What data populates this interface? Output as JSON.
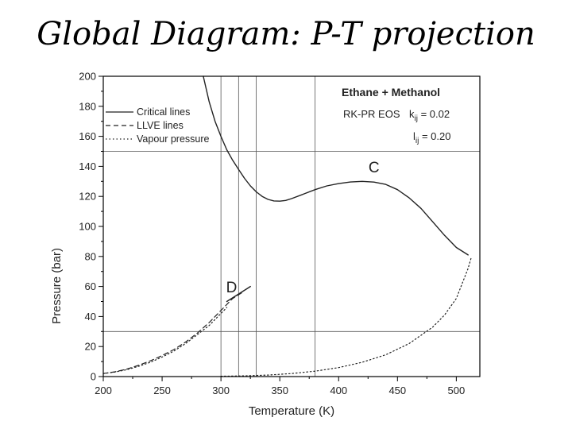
{
  "slide": {
    "title": "Global Diagram: P-T projection"
  },
  "colors": {
    "line": "#222222",
    "grid": "#555555",
    "frame": "#000000"
  },
  "chart_data": {
    "type": "line",
    "title": "Ethane + Methanol",
    "xlabel": "Temperature (K)",
    "ylabel": "Pressure (bar)",
    "xlim": [
      200,
      520
    ],
    "ylim": [
      0,
      200
    ],
    "x_ticks": [
      200,
      250,
      300,
      350,
      400,
      450,
      500
    ],
    "y_ticks": [
      0,
      20,
      40,
      60,
      80,
      100,
      120,
      140,
      160,
      180,
      200
    ],
    "grid_x": [
      300,
      315,
      330,
      380
    ],
    "grid_y": [
      30,
      150
    ],
    "eos": {
      "model": "RK-PR EOS",
      "kij_label": "k",
      "kij_sub": "ij",
      "kij_value": " = 0.02",
      "lij_label": "l",
      "lij_sub": "ij",
      "lij_value": " = 0.20"
    },
    "legend": [
      {
        "label": "Critical lines",
        "style": "solid"
      },
      {
        "label": "LLVE lines",
        "style": "dashed"
      },
      {
        "label": "Vapour pressure",
        "style": "dotted"
      }
    ],
    "series": [
      {
        "name": "Critical line",
        "style": "solid",
        "points": [
          [
            285,
            200
          ],
          [
            290,
            183
          ],
          [
            295,
            170
          ],
          [
            300,
            160
          ],
          [
            305,
            151
          ],
          [
            310,
            144
          ],
          [
            315,
            138
          ],
          [
            320,
            132
          ],
          [
            325,
            127
          ],
          [
            330,
            123
          ],
          [
            335,
            120
          ],
          [
            340,
            118
          ],
          [
            345,
            117
          ],
          [
            350,
            116.8
          ],
          [
            355,
            117.3
          ],
          [
            360,
            118.5
          ],
          [
            370,
            121.5
          ],
          [
            380,
            124.5
          ],
          [
            390,
            127
          ],
          [
            400,
            128.5
          ],
          [
            410,
            129.6
          ],
          [
            420,
            130
          ],
          [
            430,
            129.5
          ],
          [
            440,
            128
          ],
          [
            450,
            124.5
          ],
          [
            460,
            119
          ],
          [
            470,
            112
          ],
          [
            480,
            103
          ],
          [
            490,
            94
          ],
          [
            500,
            86
          ],
          [
            510,
            81
          ]
        ]
      },
      {
        "name": "Critical line (LLVE end)",
        "style": "solid",
        "points": [
          [
            305,
            50
          ],
          [
            315,
            55
          ],
          [
            325,
            60
          ]
        ]
      },
      {
        "name": "LLVE line",
        "style": "dashed",
        "points": [
          [
            200,
            2
          ],
          [
            210,
            3.2
          ],
          [
            220,
            5
          ],
          [
            230,
            7.5
          ],
          [
            240,
            10.5
          ],
          [
            250,
            14
          ],
          [
            260,
            18
          ],
          [
            270,
            23
          ],
          [
            280,
            29
          ],
          [
            290,
            36
          ],
          [
            300,
            44
          ],
          [
            310,
            52
          ],
          [
            318,
            56
          ]
        ]
      },
      {
        "name": "Vapour pressure ethane",
        "style": "dotted",
        "points": [
          [
            200,
            2
          ],
          [
            210,
            3
          ],
          [
            220,
            4.6
          ],
          [
            230,
            6.8
          ],
          [
            240,
            9.5
          ],
          [
            250,
            13
          ],
          [
            260,
            17
          ],
          [
            270,
            22
          ],
          [
            280,
            28
          ],
          [
            290,
            34
          ],
          [
            300,
            42
          ],
          [
            305,
            46
          ]
        ]
      },
      {
        "name": "Vapour pressure methanol",
        "style": "dotted",
        "points": [
          [
            300,
            0.2
          ],
          [
            320,
            0.5
          ],
          [
            340,
            1
          ],
          [
            360,
            2
          ],
          [
            380,
            3.6
          ],
          [
            400,
            6
          ],
          [
            420,
            9.5
          ],
          [
            440,
            14.5
          ],
          [
            460,
            22
          ],
          [
            480,
            33
          ],
          [
            490,
            41
          ],
          [
            500,
            52
          ],
          [
            510,
            72
          ],
          [
            513,
            80
          ]
        ]
      }
    ],
    "annotations": [
      {
        "text": "C",
        "x": 430,
        "y": 136
      },
      {
        "text": "D",
        "x": 309,
        "y": 56
      }
    ]
  }
}
